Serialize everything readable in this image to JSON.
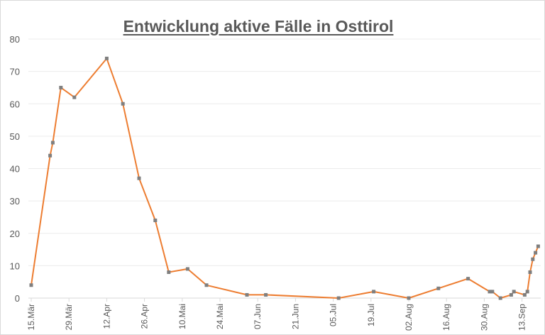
{
  "chart_data": {
    "type": "line",
    "title": "Entwicklung aktive Fälle in Osttirol",
    "xlabel": "",
    "ylabel": "",
    "ylim": [
      0,
      80
    ],
    "yticks": [
      0,
      10,
      20,
      30,
      40,
      50,
      60,
      70,
      80
    ],
    "grid": true,
    "legend": "none",
    "xtick_labels": [
      "15.Mär",
      "29.Mär",
      "12.Apr",
      "26.Apr",
      "10.Mai",
      "24.Mai",
      "07.Jun",
      "21.Jun",
      "05.Jul",
      "19.Jul",
      "02.Aug",
      "16.Aug",
      "30.Aug",
      "13.Sep"
    ],
    "line_color": "#ed7d31",
    "marker_color": "#7f7f7f",
    "series": [
      {
        "name": "aktive Fälle",
        "points": [
          {
            "day": 0,
            "value": 4
          },
          {
            "day": 7,
            "value": 44
          },
          {
            "day": 8,
            "value": 48
          },
          {
            "day": 11,
            "value": 65
          },
          {
            "day": 16,
            "value": 62
          },
          {
            "day": 28,
            "value": 74
          },
          {
            "day": 34,
            "value": 60
          },
          {
            "day": 40,
            "value": 37
          },
          {
            "day": 46,
            "value": 24
          },
          {
            "day": 51,
            "value": 8
          },
          {
            "day": 58,
            "value": 9
          },
          {
            "day": 65,
            "value": 4
          },
          {
            "day": 80,
            "value": 1
          },
          {
            "day": 87,
            "value": 1
          },
          {
            "day": 114,
            "value": 0
          },
          {
            "day": 127,
            "value": 2
          },
          {
            "day": 140,
            "value": 0
          },
          {
            "day": 151,
            "value": 3
          },
          {
            "day": 162,
            "value": 6
          },
          {
            "day": 170,
            "value": 2
          },
          {
            "day": 171,
            "value": 2
          },
          {
            "day": 174,
            "value": 0
          },
          {
            "day": 178,
            "value": 1
          },
          {
            "day": 179,
            "value": 2
          },
          {
            "day": 183,
            "value": 1
          },
          {
            "day": 184,
            "value": 2
          },
          {
            "day": 185,
            "value": 8
          },
          {
            "day": 186,
            "value": 12
          },
          {
            "day": 187,
            "value": 14
          },
          {
            "day": 188,
            "value": 16
          }
        ]
      }
    ]
  }
}
